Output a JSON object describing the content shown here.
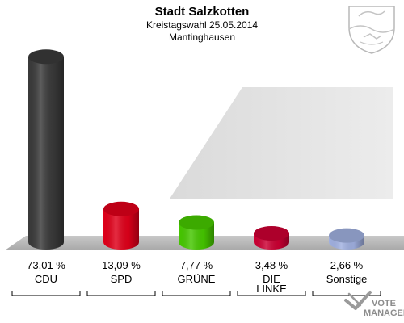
{
  "header": {
    "title": "Stadt Salzkotten",
    "subtitle": "Kreistagswahl 25.05.2014",
    "district": "Mantinghausen"
  },
  "chart_data": {
    "type": "bar",
    "categories": [
      "CDU",
      "SPD",
      "GRÜNE",
      "DIE LINKE",
      "Sonstige"
    ],
    "category_lines": [
      [
        "CDU"
      ],
      [
        "SPD"
      ],
      [
        "GRÜNE"
      ],
      [
        "DIE",
        "LINKE"
      ],
      [
        "Sonstige"
      ]
    ],
    "values": [
      73.01,
      13.09,
      7.77,
      3.48,
      2.66
    ],
    "value_labels": [
      "73,01 %",
      "13,09 %",
      "7,77 %",
      "3,48 %",
      "2,66 %"
    ],
    "colors": [
      "#3a3a3a",
      "#e0001a",
      "#46c800",
      "#cc0033",
      "#a0b0e0"
    ],
    "ylim": [
      0,
      75
    ],
    "grid": false,
    "legend": "none"
  },
  "watermark": {
    "line1": "VOTE",
    "line2": "MANAGER"
  },
  "icons": {
    "coat_of_arms": "nrw-coat-of-arms-icon",
    "brand": "vote-manager-logo-icon"
  }
}
